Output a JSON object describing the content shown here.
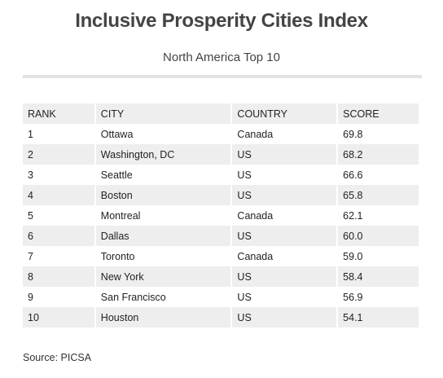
{
  "header": {
    "title": "Inclusive Prosperity Cities Index",
    "subtitle": "North America Top 10"
  },
  "table": {
    "columns": [
      "RANK",
      "CITY",
      "COUNTRY",
      "SCORE"
    ],
    "rows": [
      [
        "1",
        "Ottawa",
        "Canada",
        "69.8"
      ],
      [
        "2",
        "Washington, DC",
        "US",
        "68.2"
      ],
      [
        "3",
        "Seattle",
        "US",
        "66.6"
      ],
      [
        "4",
        "Boston",
        "US",
        "65.8"
      ],
      [
        "5",
        "Montreal",
        "Canada",
        "62.1"
      ],
      [
        "6",
        "Dallas",
        "US",
        "60.0"
      ],
      [
        "7",
        "Toronto",
        "Canada",
        "59.0"
      ],
      [
        "8",
        "New York",
        "US",
        "58.4"
      ],
      [
        "9",
        "San Francisco",
        "US",
        "56.9"
      ],
      [
        "10",
        "Houston",
        "US",
        "54.1"
      ]
    ]
  },
  "footer": {
    "source": "Source: PICSA"
  }
}
